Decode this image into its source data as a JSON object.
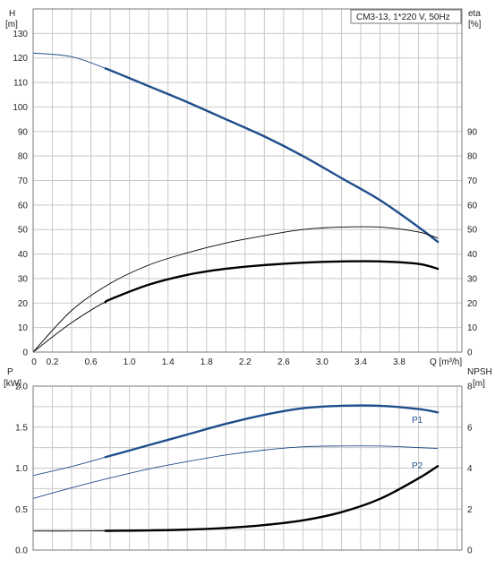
{
  "chart_data": [
    {
      "type": "line",
      "title": "CM3-13, 1*220 V, 50Hz",
      "xlabel": "Q [m³/h]",
      "xlim": [
        0,
        4.45
      ],
      "xticks": [
        0,
        0.2,
        0.6,
        1.0,
        1.4,
        1.8,
        2.2,
        2.6,
        3.0,
        3.4,
        3.8
      ],
      "xtick_labels": [
        "0",
        "0.2",
        "0.6",
        "1.0",
        "1.4",
        "1.8",
        "2.2",
        "2.6",
        "3.0",
        "3.4",
        "3.8"
      ],
      "left_axis": {
        "label_line1": "H",
        "label_line2": "[m]",
        "ylim": [
          0,
          140
        ],
        "ticks": [
          0,
          10,
          20,
          30,
          40,
          50,
          60,
          70,
          80,
          90,
          100,
          110,
          120,
          130
        ]
      },
      "right_axis": {
        "label_line1": "eta",
        "label_line2": "[%]",
        "ylim": [
          0,
          140
        ],
        "ticks": [
          0,
          10,
          20,
          30,
          40,
          50,
          60,
          70,
          80,
          90
        ]
      },
      "grid": true,
      "series": [
        {
          "axis": "left",
          "color": "#1f4e8c",
          "x": [
            0,
            0.4,
            0.8,
            1.2,
            1.6,
            2.0,
            2.4,
            2.8,
            3.2,
            3.6,
            4.0,
            4.2
          ],
          "y": [
            122,
            120.5,
            115,
            108.5,
            102,
            95,
            88,
            80,
            71,
            62,
            51,
            45
          ],
          "highlight_from_x": 0.75
        },
        {
          "axis": "right",
          "color": "#000000",
          "x": [
            0,
            0.4,
            0.8,
            1.2,
            1.6,
            2.0,
            2.4,
            2.8,
            3.2,
            3.6,
            4.0,
            4.2
          ],
          "y": [
            0,
            17,
            28,
            35.5,
            40.5,
            44.5,
            47.5,
            50,
            51,
            51,
            49,
            46.5
          ],
          "highlight_from_x": 99
        },
        {
          "axis": "right",
          "color": "#000000",
          "x": [
            0,
            0.4,
            0.8,
            1.2,
            1.6,
            2.0,
            2.4,
            2.8,
            3.2,
            3.6,
            4.0,
            4.2
          ],
          "y": [
            0,
            12,
            21.5,
            27.5,
            31.5,
            34,
            35.5,
            36.5,
            37,
            37,
            36,
            34
          ],
          "highlight_from_x": 0.75
        }
      ]
    },
    {
      "type": "line",
      "xlim": [
        0,
        4.45
      ],
      "left_axis": {
        "label_line1": "P",
        "label_line2": "[kW]",
        "ylim": [
          0,
          2.0
        ],
        "ticks": [
          0.0,
          0.5,
          1.0,
          1.5,
          2.0
        ],
        "tick_labels": [
          "0.0",
          "0.5",
          "1.0",
          "1.5",
          "2.0"
        ]
      },
      "right_axis": {
        "label_line1": "NPSH",
        "label_line2": "[m]",
        "ylim": [
          0,
          8
        ],
        "ticks": [
          0,
          2,
          4,
          6,
          8
        ]
      },
      "grid": true,
      "series": [
        {
          "name": "P1",
          "axis": "left",
          "color": "#1f4e8c",
          "x": [
            0,
            0.4,
            0.8,
            1.2,
            1.6,
            2.0,
            2.4,
            2.8,
            3.2,
            3.6,
            4.0,
            4.2
          ],
          "y": [
            0.91,
            1.02,
            1.15,
            1.28,
            1.41,
            1.54,
            1.65,
            1.73,
            1.76,
            1.76,
            1.72,
            1.68
          ],
          "highlight_from_x": 0.75
        },
        {
          "name": "P2",
          "axis": "left",
          "color": "#1f4e8c",
          "x": [
            0,
            0.4,
            0.8,
            1.2,
            1.6,
            2.0,
            2.4,
            2.8,
            3.2,
            3.6,
            4.0,
            4.2
          ],
          "y": [
            0.63,
            0.76,
            0.88,
            0.99,
            1.08,
            1.16,
            1.22,
            1.26,
            1.27,
            1.27,
            1.25,
            1.24
          ],
          "highlight_from_x": 99
        },
        {
          "axis": "right",
          "color": "#000000",
          "x": [
            0,
            0.4,
            0.8,
            1.2,
            1.6,
            2.0,
            2.4,
            2.8,
            3.2,
            3.6,
            4.0,
            4.2
          ],
          "y": [
            0.93,
            0.93,
            0.94,
            0.96,
            1.0,
            1.08,
            1.22,
            1.45,
            1.85,
            2.5,
            3.5,
            4.1
          ],
          "highlight_from_x": 0.75
        }
      ]
    }
  ]
}
